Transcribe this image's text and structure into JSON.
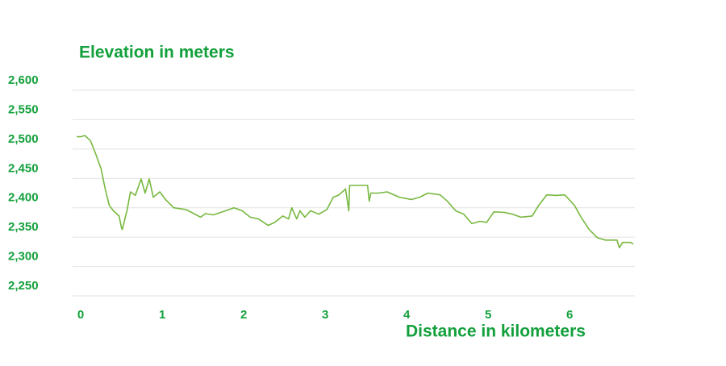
{
  "chart_data": {
    "type": "line",
    "title": "Elevation in meters",
    "x_label": "Distance in kilometers",
    "color": "#77b83f",
    "grid": true,
    "xlim": [
      -0.1,
      6.8
    ],
    "xticks": [
      0,
      1,
      2,
      3,
      4,
      5,
      6
    ],
    "ylim": [
      2250,
      2600
    ],
    "yticks": [
      {
        "value": 2250,
        "label": "2,250"
      },
      {
        "value": 2300,
        "label": "2,300"
      },
      {
        "value": 2350,
        "label": "2,350"
      },
      {
        "value": 2400,
        "label": "2,400"
      },
      {
        "value": 2450,
        "label": "2,450"
      },
      {
        "value": 2500,
        "label": "2,500"
      },
      {
        "value": 2550,
        "label": "2,550"
      },
      {
        "value": 2600,
        "label": "2,600"
      }
    ],
    "x": [
      -0.05,
      0,
      0.05,
      0.12,
      0.18,
      0.25,
      0.3,
      0.35,
      0.4,
      0.47,
      0.5,
      0.51,
      0.57,
      0.61,
      0.67,
      0.74,
      0.79,
      0.84,
      0.89,
      0.97,
      1.04,
      1.14,
      1.29,
      1.39,
      1.47,
      1.53,
      1.63,
      1.78,
      1.88,
      1.98,
      2.08,
      2.18,
      2.3,
      2.38,
      2.48,
      2.55,
      2.59,
      2.65,
      2.69,
      2.75,
      2.82,
      2.92,
      3.02,
      3.1,
      3.17,
      3.25,
      3.29,
      3.3,
      3.35,
      3.52,
      3.54,
      3.56,
      3.66,
      3.76,
      3.91,
      4.06,
      4.16,
      4.26,
      4.41,
      4.5,
      4.6,
      4.7,
      4.8,
      4.9,
      4.98,
      5.07,
      5.2,
      5.3,
      5.4,
      5.54,
      5.62,
      5.72,
      5.84,
      5.94,
      6.06,
      6.14,
      6.24,
      6.34,
      6.44,
      6.49,
      6.58,
      6.61,
      6.65,
      6.75,
      6.78
    ],
    "values": [
      2521,
      2521,
      2523,
      2514,
      2493,
      2466,
      2432,
      2404,
      2395,
      2386,
      2366,
      2363,
      2397,
      2427,
      2421,
      2449,
      2425,
      2449,
      2418,
      2427,
      2414,
      2400,
      2397,
      2390,
      2384,
      2390,
      2388,
      2395,
      2400,
      2395,
      2384,
      2381,
      2370,
      2375,
      2386,
      2381,
      2400,
      2381,
      2395,
      2384,
      2395,
      2389,
      2397,
      2418,
      2422,
      2432,
      2395,
      2438,
      2438,
      2438,
      2411,
      2425,
      2425,
      2427,
      2418,
      2414,
      2418,
      2425,
      2422,
      2411,
      2395,
      2389,
      2373,
      2377,
      2375,
      2393,
      2392,
      2389,
      2384,
      2386,
      2404,
      2422,
      2421,
      2422,
      2404,
      2384,
      2363,
      2349,
      2345,
      2345,
      2345,
      2332,
      2341,
      2341,
      2338
    ]
  }
}
